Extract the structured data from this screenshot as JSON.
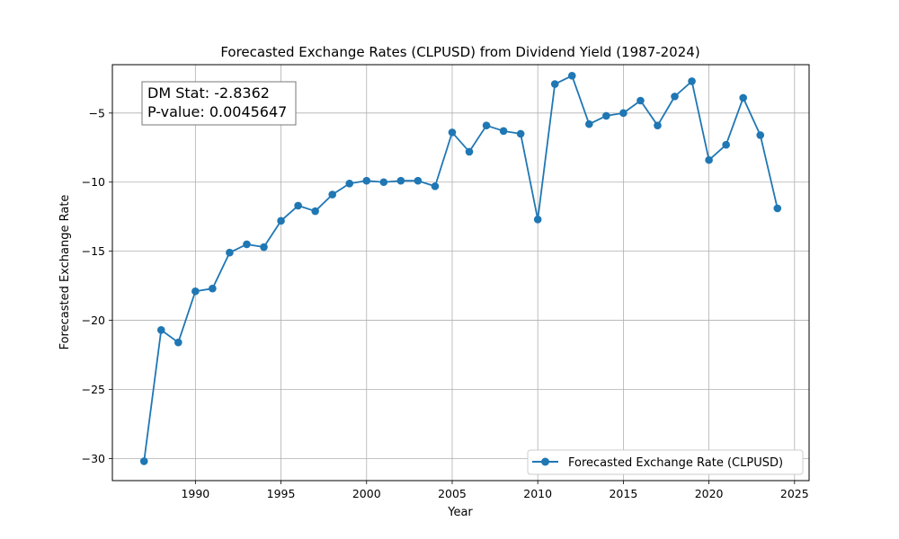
{
  "chart_data": {
    "type": "line",
    "title": "Forecasted Exchange Rates (CLPUSD) from Dividend Yield (1987-2024)",
    "xlabel": "Year",
    "ylabel": "Forecasted Exchange Rate",
    "xlim": [
      1985.15,
      2025.85
    ],
    "ylim": [
      -31.6,
      -1.5
    ],
    "xticks": [
      1990,
      1995,
      2000,
      2005,
      2010,
      2015,
      2020,
      2025
    ],
    "yticks": [
      -30,
      -25,
      -20,
      -15,
      -10,
      -5
    ],
    "grid": true,
    "legend_position": "lower-right",
    "series": [
      {
        "name": "Forecasted Exchange Rate (CLPUSD)",
        "color": "#1f77b4",
        "x": [
          1987,
          1988,
          1989,
          1990,
          1991,
          1992,
          1993,
          1994,
          1995,
          1996,
          1997,
          1998,
          1999,
          2000,
          2001,
          2002,
          2003,
          2004,
          2005,
          2006,
          2007,
          2008,
          2009,
          2010,
          2011,
          2012,
          2013,
          2014,
          2015,
          2016,
          2017,
          2018,
          2019,
          2020,
          2021,
          2022,
          2023,
          2024
        ],
        "y": [
          -30.2,
          -20.7,
          -21.6,
          -17.9,
          -17.7,
          -15.1,
          -14.5,
          -14.7,
          -12.8,
          -11.7,
          -12.1,
          -10.9,
          -10.1,
          -9.9,
          -10.0,
          -9.9,
          -9.9,
          -10.3,
          -6.4,
          -7.8,
          -5.9,
          -6.3,
          -6.5,
          -12.7,
          -2.9,
          -2.3,
          -5.8,
          -5.2,
          -5.0,
          -4.1,
          -5.9,
          -3.8,
          -2.7,
          -8.4,
          -7.3,
          -3.9,
          -6.6,
          -11.9
        ]
      }
    ],
    "annotation": {
      "line1": "DM Stat: -2.8362",
      "line2": "P-value: 0.0045647"
    },
    "legend_label": "Forecasted Exchange Rate (CLPUSD)"
  }
}
